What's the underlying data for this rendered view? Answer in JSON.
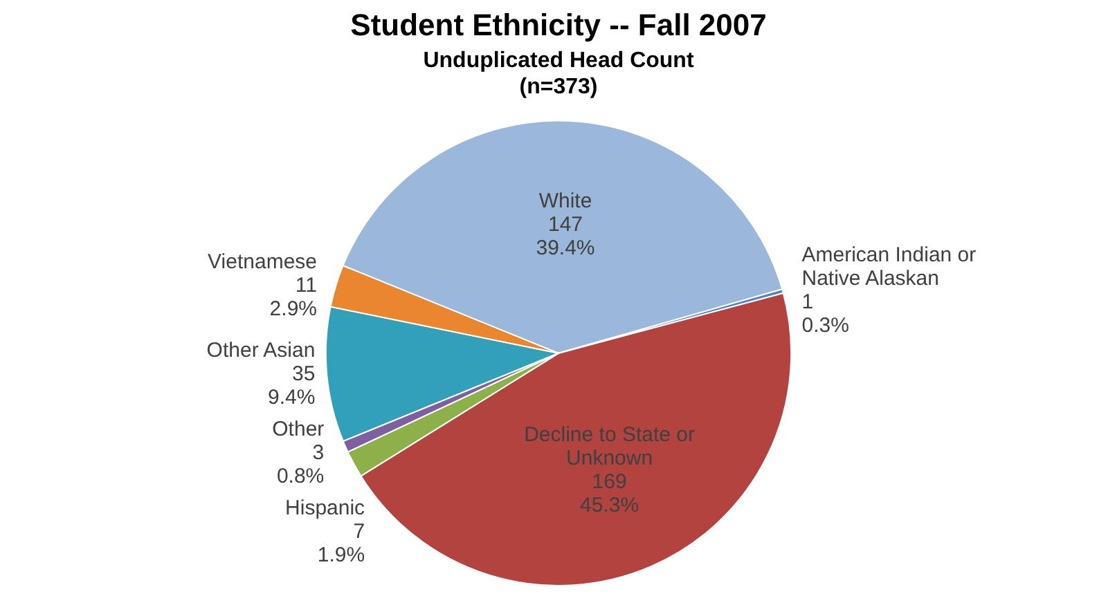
{
  "chart_data": {
    "type": "pie",
    "title": "Student Ethnicity -- Fall 2007",
    "subtitle": "Unduplicated Head Count\n(n=373)",
    "categories": [
      "Decline to State or Unknown",
      "Hispanic",
      "Other",
      "Other Asian",
      "Vietnamese",
      "White",
      "American Indian or Native Alaskan"
    ],
    "values": [
      169,
      7,
      3,
      35,
      11,
      147,
      1
    ],
    "colors": [
      "#b2433f",
      "#8db04a",
      "#7e5fa0",
      "#31a0b8",
      "#e9862f",
      "#9bb7d9",
      "#4f81bd"
    ],
    "value_labels": [
      "169\n45.3%",
      "7\n1.9%",
      "3\n0.8%",
      "35\n9.4%",
      "11\n2.9%",
      "147\n39.4%",
      "1\n0.3%"
    ],
    "legend": false
  }
}
